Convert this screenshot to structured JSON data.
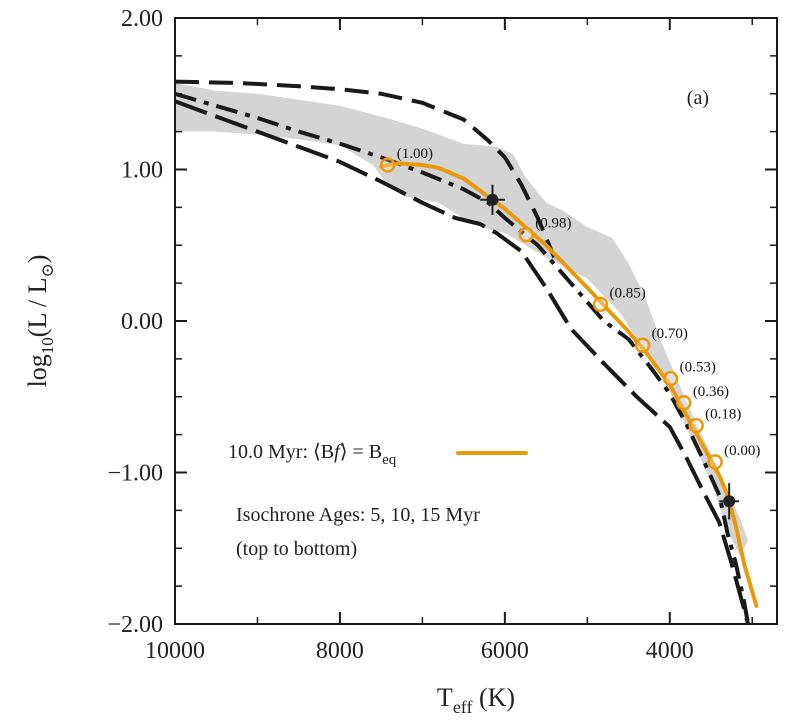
{
  "chart_data": {
    "type": "line",
    "panel_label": "(a)",
    "xlabel": {
      "main": "T",
      "sub": "eff",
      "tail": " (K)"
    },
    "ylabel": {
      "pre": "log",
      "sub1": "10",
      "mid": "(L / L",
      "sub2": "⊙",
      "tail": ")"
    },
    "xlim": [
      10000,
      2700
    ],
    "ylim": [
      -2.0,
      2.0
    ],
    "x_ticks": [
      10000,
      8000,
      6000,
      4000
    ],
    "x_tick_labels": [
      "10000",
      "8000",
      "6000",
      "4000"
    ],
    "y_ticks": [
      2.0,
      1.0,
      0.0,
      -1.0,
      -2.0
    ],
    "y_tick_labels": [
      "2.00",
      "1.00",
      "0.00",
      "−1.00",
      "−2.00"
    ],
    "annotations": {
      "legend_label": {
        "pre": "10.0 Myr: ⟨B",
        "f": "f",
        "mid": "⟩ = B",
        "sub": "eq"
      },
      "isochrone_line1": "Isochrone Ages: 5, 10, 15 Myr",
      "isochrone_line2": "(top to bottom)"
    },
    "colors": {
      "model_track": "#e89a0c",
      "isochrones": "#1a1a1a",
      "band": "#d4d4d4",
      "observed": "#222222"
    },
    "shaded_band": {
      "upper": [
        [
          10000,
          1.57
        ],
        [
          9500,
          1.52
        ],
        [
          9000,
          1.5
        ],
        [
          8500,
          1.46
        ],
        [
          8000,
          1.42
        ],
        [
          7500,
          1.35
        ],
        [
          7000,
          1.27
        ],
        [
          6500,
          1.17
        ],
        [
          6100,
          1.15
        ],
        [
          5900,
          1.1
        ],
        [
          5750,
          0.95
        ],
        [
          5500,
          0.78
        ],
        [
          5300,
          0.73
        ],
        [
          5000,
          0.62
        ],
        [
          4700,
          0.55
        ],
        [
          4500,
          0.38
        ],
        [
          4300,
          0.16
        ],
        [
          4100,
          -0.14
        ],
        [
          3900,
          -0.4
        ],
        [
          3700,
          -0.65
        ],
        [
          3500,
          -0.88
        ],
        [
          3300,
          -1.12
        ],
        [
          3150,
          -1.3
        ],
        [
          3050,
          -1.45
        ]
      ],
      "lower": [
        [
          3050,
          -1.45
        ],
        [
          3150,
          -1.55
        ],
        [
          3300,
          -1.38
        ],
        [
          3500,
          -1.06
        ],
        [
          3700,
          -0.82
        ],
        [
          3900,
          -0.58
        ],
        [
          4100,
          -0.36
        ],
        [
          4300,
          -0.2
        ],
        [
          4600,
          0.05
        ],
        [
          5000,
          0.28
        ],
        [
          5500,
          0.42
        ],
        [
          6000,
          0.58
        ],
        [
          6400,
          0.64
        ],
        [
          6800,
          0.78
        ],
        [
          7000,
          0.8
        ],
        [
          7200,
          0.82
        ],
        [
          7400,
          0.88
        ],
        [
          7600,
          1.03
        ],
        [
          8000,
          1.16
        ],
        [
          8500,
          1.2
        ],
        [
          9000,
          1.23
        ],
        [
          9500,
          1.25
        ],
        [
          10000,
          1.25
        ]
      ]
    },
    "isochrones": [
      {
        "age_myr": 5,
        "dash": "dash",
        "points": [
          [
            10000,
            1.58
          ],
          [
            9200,
            1.57
          ],
          [
            8500,
            1.55
          ],
          [
            8000,
            1.53
          ],
          [
            7500,
            1.5
          ],
          [
            7000,
            1.44
          ],
          [
            6500,
            1.33
          ],
          [
            6200,
            1.19
          ],
          [
            6000,
            1.08
          ],
          [
            5800,
            0.9
          ],
          [
            5600,
            0.68
          ],
          [
            5400,
            0.42
          ]
        ]
      },
      {
        "age_myr": 10,
        "dash": "dashdot",
        "points": [
          [
            10000,
            1.5
          ],
          [
            9500,
            1.42
          ],
          [
            9000,
            1.34
          ],
          [
            8500,
            1.25
          ],
          [
            8000,
            1.17
          ],
          [
            7500,
            1.08
          ],
          [
            7000,
            0.98
          ],
          [
            6500,
            0.87
          ],
          [
            6200,
            0.78
          ],
          [
            6000,
            0.68
          ],
          [
            5600,
            0.5
          ],
          [
            5200,
            0.25
          ],
          [
            4800,
            0.0
          ],
          [
            4500,
            -0.12
          ],
          [
            4200,
            -0.33
          ],
          [
            4000,
            -0.48
          ],
          [
            3800,
            -0.68
          ],
          [
            3600,
            -0.91
          ],
          [
            3400,
            -1.15
          ],
          [
            3300,
            -1.4
          ],
          [
            3200,
            -1.6
          ],
          [
            3100,
            -1.85
          ],
          [
            3050,
            -2.0
          ]
        ]
      },
      {
        "age_myr": 15,
        "dash": "longdash",
        "points": [
          [
            10000,
            1.45
          ],
          [
            9500,
            1.35
          ],
          [
            9000,
            1.25
          ],
          [
            8500,
            1.15
          ],
          [
            8000,
            1.05
          ],
          [
            7500,
            0.92
          ],
          [
            7000,
            0.78
          ],
          [
            6600,
            0.68
          ],
          [
            6300,
            0.64
          ],
          [
            6100,
            0.58
          ],
          [
            5800,
            0.46
          ],
          [
            5500,
            0.22
          ],
          [
            5200,
            -0.05
          ],
          [
            4800,
            -0.28
          ],
          [
            4400,
            -0.5
          ],
          [
            4000,
            -0.7
          ],
          [
            3800,
            -0.9
          ],
          [
            3600,
            -1.12
          ],
          [
            3400,
            -1.33
          ],
          [
            3250,
            -1.6
          ],
          [
            3150,
            -1.8
          ],
          [
            3050,
            -2.0
          ]
        ]
      }
    ],
    "model_track": {
      "name": "10.0 Myr: ⟨Bf⟩ = Beq",
      "points": [
        [
          7500,
          1.02
        ],
        [
          7300,
          1.04
        ],
        [
          7000,
          1.03
        ],
        [
          6800,
          1.01
        ],
        [
          6500,
          0.94
        ],
        [
          6000,
          0.74
        ],
        [
          5500,
          0.5
        ],
        [
          5000,
          0.22
        ],
        [
          4500,
          -0.07
        ],
        [
          4300,
          -0.2
        ],
        [
          4000,
          -0.42
        ],
        [
          3800,
          -0.62
        ],
        [
          3600,
          -0.82
        ],
        [
          3400,
          -1.02
        ],
        [
          3300,
          -1.15
        ],
        [
          3200,
          -1.35
        ],
        [
          3100,
          -1.6
        ],
        [
          2950,
          -1.88
        ]
      ]
    },
    "mass_markers": [
      {
        "teff": 7420,
        "logL": 1.03,
        "label": "(1.00)"
      },
      {
        "teff": 5740,
        "logL": 0.57,
        "label": "(0.98)"
      },
      {
        "teff": 4840,
        "logL": 0.11,
        "label": "(0.85)"
      },
      {
        "teff": 4330,
        "logL": -0.16,
        "label": "(0.70)"
      },
      {
        "teff": 3990,
        "logL": -0.38,
        "label": "(0.53)"
      },
      {
        "teff": 3830,
        "logL": -0.54,
        "label": "(0.36)"
      },
      {
        "teff": 3680,
        "logL": -0.69,
        "label": "(0.18)"
      },
      {
        "teff": 3450,
        "logL": -0.93,
        "label": "(0.00)"
      }
    ],
    "observed": [
      {
        "teff": 6150,
        "logL": 0.8,
        "xerr": 150,
        "yerr": 0.1
      },
      {
        "teff": 3280,
        "logL": -1.19,
        "xerr": 120,
        "yerr": 0.12
      }
    ]
  }
}
